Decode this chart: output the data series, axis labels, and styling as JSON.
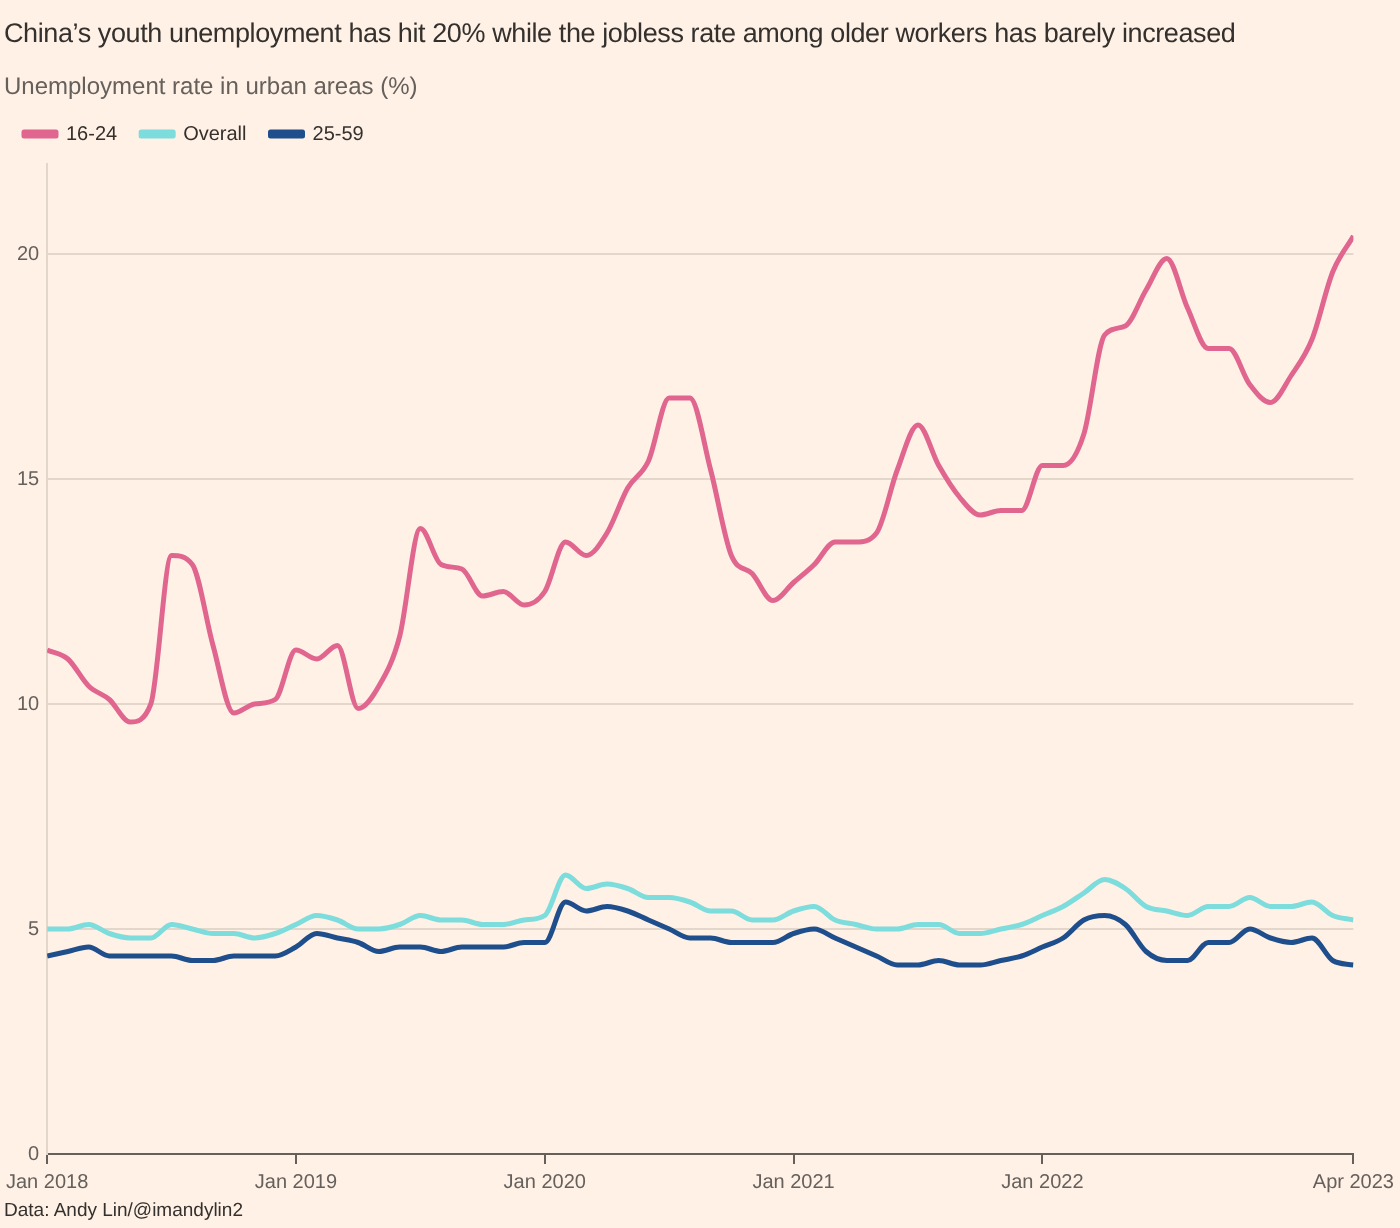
{
  "chart_data": {
    "type": "line",
    "title": "China’s youth unemployment has hit 20% while the jobless rate among older workers has barely increased",
    "subtitle": "Unemployment rate in urban areas (%)",
    "x": [
      "2018-01",
      "2018-02",
      "2018-03",
      "2018-04",
      "2018-05",
      "2018-06",
      "2018-07",
      "2018-08",
      "2018-09",
      "2018-10",
      "2018-11",
      "2018-12",
      "2019-01",
      "2019-02",
      "2019-03",
      "2019-04",
      "2019-05",
      "2019-06",
      "2019-07",
      "2019-08",
      "2019-09",
      "2019-10",
      "2019-11",
      "2019-12",
      "2020-01",
      "2020-02",
      "2020-03",
      "2020-04",
      "2020-05",
      "2020-06",
      "2020-07",
      "2020-08",
      "2020-09",
      "2020-10",
      "2020-11",
      "2020-12",
      "2021-01",
      "2021-02",
      "2021-03",
      "2021-04",
      "2021-05",
      "2021-06",
      "2021-07",
      "2021-08",
      "2021-09",
      "2021-10",
      "2021-11",
      "2021-12",
      "2022-01",
      "2022-02",
      "2022-03",
      "2022-04",
      "2022-05",
      "2022-06",
      "2022-07",
      "2022-08",
      "2022-09",
      "2022-10",
      "2022-11",
      "2022-12",
      "2023-01",
      "2023-02",
      "2023-03",
      "2023-04"
    ],
    "series": [
      {
        "name": "16-24",
        "color": "#e0668f",
        "values": [
          11.2,
          11.0,
          10.4,
          10.1,
          9.6,
          10.0,
          13.3,
          13.1,
          11.3,
          9.8,
          10.0,
          10.1,
          11.2,
          11.0,
          11.3,
          9.9,
          10.4,
          11.5,
          13.9,
          13.1,
          13.0,
          12.4,
          12.5,
          12.2,
          12.5,
          13.6,
          13.3,
          13.8,
          14.8,
          15.4,
          16.8,
          16.8,
          15.2,
          13.3,
          12.9,
          12.3,
          12.7,
          13.1,
          13.6,
          13.6,
          13.8,
          15.2,
          16.2,
          15.3,
          14.6,
          14.2,
          14.3,
          14.3,
          15.3,
          15.3,
          16.0,
          18.2,
          18.4,
          19.2,
          19.9,
          18.8,
          17.9,
          17.9,
          17.1,
          16.7,
          17.3,
          18.1,
          19.6,
          20.4
        ]
      },
      {
        "name": "Overall",
        "color": "#7ddcdc",
        "values": [
          5.0,
          5.0,
          5.1,
          4.9,
          4.8,
          4.8,
          5.1,
          5.0,
          4.9,
          4.9,
          4.8,
          4.9,
          5.1,
          5.3,
          5.2,
          5.0,
          5.0,
          5.1,
          5.3,
          5.2,
          5.2,
          5.1,
          5.1,
          5.2,
          5.3,
          6.2,
          5.9,
          6.0,
          5.9,
          5.7,
          5.7,
          5.6,
          5.4,
          5.4,
          5.2,
          5.2,
          5.4,
          5.5,
          5.2,
          5.1,
          5.0,
          5.0,
          5.1,
          5.1,
          4.9,
          4.9,
          5.0,
          5.1,
          5.3,
          5.5,
          5.8,
          6.1,
          5.9,
          5.5,
          5.4,
          5.3,
          5.5,
          5.5,
          5.7,
          5.5,
          5.5,
          5.6,
          5.3,
          5.2
        ]
      },
      {
        "name": "25-59",
        "color": "#1e4f8c",
        "values": [
          4.4,
          4.5,
          4.6,
          4.4,
          4.4,
          4.4,
          4.4,
          4.3,
          4.3,
          4.4,
          4.4,
          4.4,
          4.6,
          4.9,
          4.8,
          4.7,
          4.5,
          4.6,
          4.6,
          4.5,
          4.6,
          4.6,
          4.6,
          4.7,
          4.7,
          5.6,
          5.4,
          5.5,
          5.4,
          5.2,
          5.0,
          4.8,
          4.8,
          4.7,
          4.7,
          4.7,
          4.9,
          5.0,
          4.8,
          4.6,
          4.4,
          4.2,
          4.2,
          4.3,
          4.2,
          4.2,
          4.3,
          4.4,
          4.6,
          4.8,
          5.2,
          5.3,
          5.1,
          4.5,
          4.3,
          4.3,
          4.7,
          4.7,
          5.0,
          4.8,
          4.7,
          4.8,
          4.3,
          4.2
        ]
      }
    ],
    "xlim": [
      "2018-01",
      "2023-04"
    ],
    "xticks": [
      {
        "value": "2018-01",
        "label": "Jan 2018"
      },
      {
        "value": "2019-01",
        "label": "Jan 2019"
      },
      {
        "value": "2020-01",
        "label": "Jan 2020"
      },
      {
        "value": "2021-01",
        "label": "Jan 2021"
      },
      {
        "value": "2022-01",
        "label": "Jan 2022"
      },
      {
        "value": "2023-04",
        "label": "Apr 2023"
      }
    ],
    "ylim": [
      0,
      22
    ],
    "yticks": [
      0,
      5,
      10,
      15,
      20
    ],
    "grid": "y",
    "legend": "top left",
    "marker": "none",
    "line_style": "solid",
    "annotations": [
      "Data: Andy Lin/@imandylin2"
    ]
  }
}
